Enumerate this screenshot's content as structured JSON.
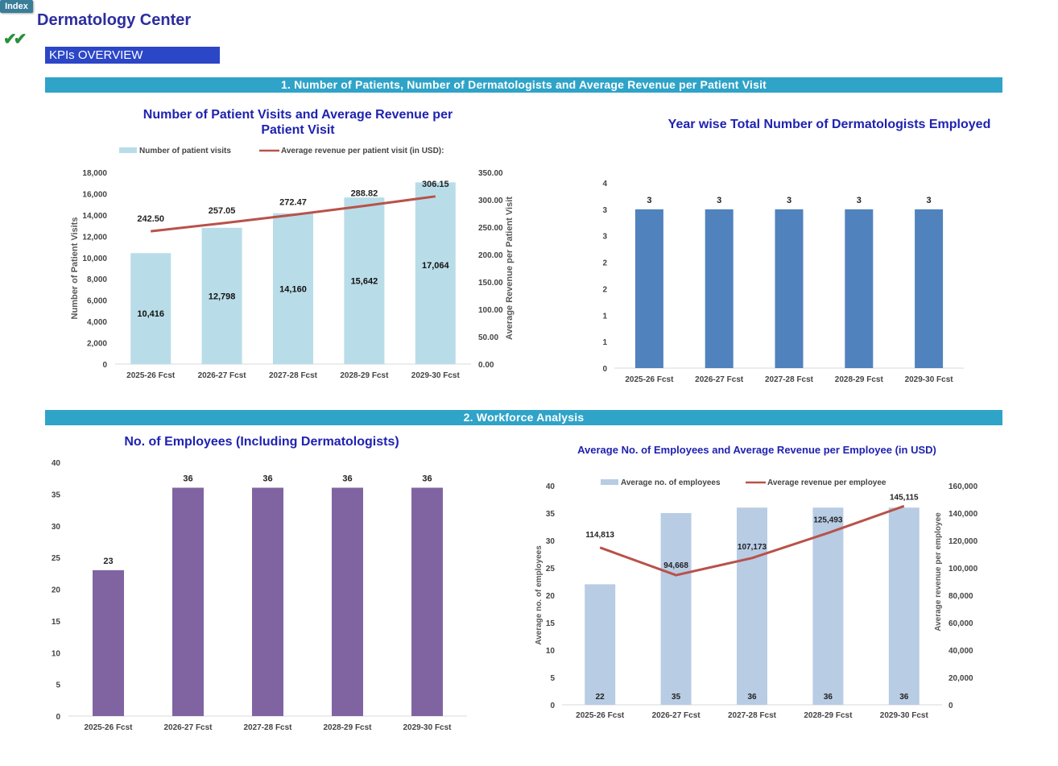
{
  "header": {
    "index_label": "Index",
    "checkmarks": "✔✔",
    "title": "Dermatology Center",
    "kpi_label": "KPIs OVERVIEW"
  },
  "sections": {
    "s1": "1. Number of Patients, Number of Dermatologists and Average Revenue per Patient Visit",
    "s2": "2. Workforce Analysis"
  },
  "colors": {
    "section_bar": "#2fa3c8",
    "patient_bars": "#b9dde8",
    "line_red": "#b8524a",
    "derm_bars": "#5082be",
    "emp_bars": "#8064a2",
    "avg_emp_bars": "#b8cce4"
  },
  "chart_data": [
    {
      "id": "patient_visits",
      "type": "bar",
      "title_line1": "Number of Patient Visits and  Average Revenue per",
      "title_line2": "Patient Visit",
      "categories": [
        "2025-26 Fcst",
        "2026-27 Fcst",
        "2027-28 Fcst",
        "2028-29 Fcst",
        "2029-30 Fcst"
      ],
      "series": [
        {
          "name": "Number of patient visits",
          "kind": "bar",
          "axis": "left",
          "values": [
            10416,
            12798,
            14160,
            15642,
            17064
          ],
          "labels": [
            "10,416",
            "12,798",
            "14,160",
            "15,642",
            "17,064"
          ]
        },
        {
          "name": "Average revenue per patient visit (in USD):",
          "kind": "line",
          "axis": "right",
          "values": [
            242.5,
            257.05,
            272.47,
            288.82,
            306.15
          ],
          "labels": [
            "242.50",
            "257.05",
            "272.47",
            "288.82",
            "306.15"
          ]
        }
      ],
      "ylabel": "Number of Patient Visits",
      "y2label": "Average Revenue per Patient Visit",
      "ylim": [
        0,
        18000
      ],
      "y2lim": [
        0,
        350
      ],
      "yticks": [
        "0",
        "2,000",
        "4,000",
        "6,000",
        "8,000",
        "10,000",
        "12,000",
        "14,000",
        "16,000",
        "18,000"
      ],
      "y2ticks": [
        "0.00",
        "50.00",
        "100.00",
        "150.00",
        "200.00",
        "250.00",
        "300.00",
        "350.00"
      ],
      "legend": "top"
    },
    {
      "id": "dermatologists",
      "type": "bar",
      "title": "Year wise Total Number of Dermatologists Employed",
      "categories": [
        "2025-26 Fcst",
        "2026-27 Fcst",
        "2027-28 Fcst",
        "2028-29 Fcst",
        "2029-30 Fcst"
      ],
      "values": [
        3,
        3,
        3,
        3,
        3
      ],
      "labels": [
        "3",
        "3",
        "3",
        "3",
        "3"
      ],
      "ylim": [
        0,
        3.5
      ],
      "yticks": [
        "0",
        "1",
        "1",
        "2",
        "2",
        "3",
        "3",
        "4"
      ]
    },
    {
      "id": "employees",
      "type": "bar",
      "title": "No. of Employees (Including Dermatologists)",
      "categories": [
        "2025-26 Fcst",
        "2026-27 Fcst",
        "2027-28 Fcst",
        "2028-29 Fcst",
        "2029-30 Fcst"
      ],
      "values": [
        23,
        36,
        36,
        36,
        36
      ],
      "labels": [
        "23",
        "36",
        "36",
        "36",
        "36"
      ],
      "ylim": [
        0,
        40
      ],
      "yticks": [
        "0",
        "5",
        "10",
        "15",
        "20",
        "25",
        "30",
        "35",
        "40"
      ]
    },
    {
      "id": "avg_employees",
      "type": "bar",
      "title": "Average No. of Employees and Average Revenue per Employee (in USD)",
      "categories": [
        "2025-26 Fcst",
        "2026-27 Fcst",
        "2027-28 Fcst",
        "2028-29 Fcst",
        "2029-30 Fcst"
      ],
      "series": [
        {
          "name": "Average no. of employees",
          "kind": "bar",
          "axis": "left",
          "values": [
            22,
            35,
            36,
            36,
            36
          ],
          "labels": [
            "22",
            "35",
            "36",
            "36",
            "36"
          ]
        },
        {
          "name": "Average revenue per employee",
          "kind": "line",
          "axis": "right",
          "values": [
            114813,
            94668,
            107173,
            125493,
            145115
          ],
          "labels": [
            "114,813",
            "94,668",
            "107,173",
            "125,493",
            "145,115"
          ]
        }
      ],
      "ylabel": "Average no. of  employees",
      "y2label": "Average revenue per employee",
      "ylim": [
        0,
        40
      ],
      "y2lim": [
        0,
        160000
      ],
      "yticks": [
        "0",
        "5",
        "10",
        "15",
        "20",
        "25",
        "30",
        "35",
        "40"
      ],
      "y2ticks": [
        "0",
        "20,000",
        "40,000",
        "60,000",
        "80,000",
        "100,000",
        "120,000",
        "140,000",
        "160,000"
      ],
      "legend": "top"
    }
  ]
}
